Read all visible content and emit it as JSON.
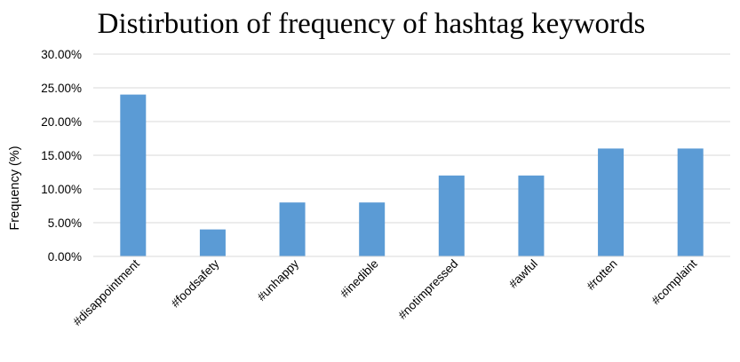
{
  "chart_data": {
    "type": "bar",
    "title": "Distirbution of frequency of hashtag keywords",
    "xlabel": "",
    "ylabel": "Frequency (%)",
    "categories": [
      "#disappointment",
      "#foodsafety",
      "#unhappy",
      "#inedible",
      "#notimpressed",
      "#awful",
      "#rotten",
      "#complaint"
    ],
    "values": [
      24.0,
      4.0,
      8.0,
      8.0,
      12.0,
      12.0,
      16.0,
      16.0
    ],
    "ylim": [
      0,
      30
    ],
    "yticks": [
      "0.00%",
      "5.00%",
      "10.00%",
      "15.00%",
      "20.00%",
      "25.00%",
      "30.00%"
    ],
    "grid": true,
    "legend": "none",
    "bar_color": "#5B9BD5",
    "grid_color": "#D9D9D9"
  }
}
